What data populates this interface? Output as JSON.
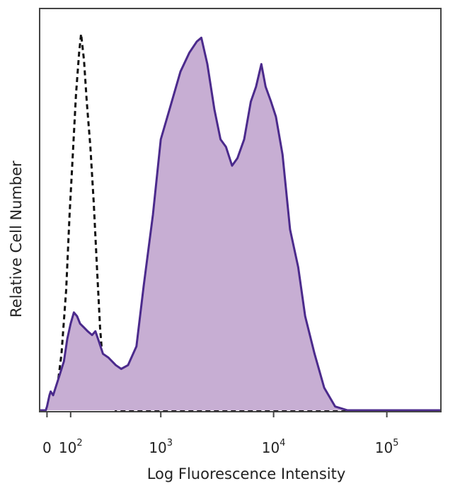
{
  "chart_data": {
    "type": "area",
    "xlabel": "Log Fluorescence Intensity",
    "ylabel": "Relative Cell Number",
    "x_scale": "biexponential",
    "xlim": [
      -30,
      300000
    ],
    "ylim": [
      0,
      1
    ],
    "x_ticks": [
      {
        "value": 0,
        "base": "0",
        "exp": ""
      },
      {
        "value": 100,
        "base": "10",
        "exp": "2"
      },
      {
        "value": 1000,
        "base": "10",
        "exp": "3"
      },
      {
        "value": 10000,
        "base": "10",
        "exp": "4"
      },
      {
        "value": 100000,
        "base": "10",
        "exp": "5"
      }
    ],
    "series": [
      {
        "style": "dashed-line",
        "color": "#111111",
        "points": [
          [
            -30,
            0.0
          ],
          [
            0,
            0.0
          ],
          [
            20,
            0.01
          ],
          [
            40,
            0.05
          ],
          [
            60,
            0.15
          ],
          [
            80,
            0.32
          ],
          [
            95,
            0.52
          ],
          [
            110,
            0.68
          ],
          [
            125,
            0.84
          ],
          [
            140,
            0.95
          ],
          [
            150,
            1.0
          ],
          [
            165,
            0.93
          ],
          [
            180,
            0.82
          ],
          [
            200,
            0.7
          ],
          [
            220,
            0.55
          ],
          [
            240,
            0.38
          ],
          [
            260,
            0.22
          ],
          [
            280,
            0.12
          ],
          [
            300,
            0.06
          ],
          [
            330,
            0.02
          ],
          [
            380,
            0.0
          ],
          [
            1000,
            0.0
          ],
          [
            10000,
            0.0
          ],
          [
            100000,
            0.0
          ],
          [
            300000,
            0.0
          ]
        ]
      },
      {
        "style": "filled-area",
        "color": "#4b2a8c",
        "fill": "#c7aed3",
        "points": [
          [
            -30,
            0.0
          ],
          [
            -5,
            0.0
          ],
          [
            0,
            0.01
          ],
          [
            10,
            0.04
          ],
          [
            15,
            0.05
          ],
          [
            25,
            0.04
          ],
          [
            40,
            0.07
          ],
          [
            55,
            0.1
          ],
          [
            70,
            0.13
          ],
          [
            85,
            0.19
          ],
          [
            100,
            0.23
          ],
          [
            115,
            0.26
          ],
          [
            130,
            0.25
          ],
          [
            145,
            0.23
          ],
          [
            165,
            0.22
          ],
          [
            185,
            0.21
          ],
          [
            210,
            0.2
          ],
          [
            230,
            0.21
          ],
          [
            255,
            0.18
          ],
          [
            280,
            0.15
          ],
          [
            320,
            0.14
          ],
          [
            380,
            0.12
          ],
          [
            430,
            0.11
          ],
          [
            500,
            0.12
          ],
          [
            600,
            0.17
          ],
          [
            700,
            0.33
          ],
          [
            850,
            0.52
          ],
          [
            1000,
            0.72
          ],
          [
            1200,
            0.8
          ],
          [
            1500,
            0.9
          ],
          [
            1800,
            0.95
          ],
          [
            2100,
            0.98
          ],
          [
            2300,
            0.99
          ],
          [
            2600,
            0.92
          ],
          [
            3000,
            0.8
          ],
          [
            3400,
            0.72
          ],
          [
            3800,
            0.7
          ],
          [
            4300,
            0.65
          ],
          [
            4800,
            0.67
          ],
          [
            5500,
            0.72
          ],
          [
            6300,
            0.82
          ],
          [
            7000,
            0.86
          ],
          [
            7800,
            0.92
          ],
          [
            8500,
            0.86
          ],
          [
            9500,
            0.82
          ],
          [
            10500,
            0.78
          ],
          [
            12000,
            0.68
          ],
          [
            14000,
            0.48
          ],
          [
            16500,
            0.38
          ],
          [
            19000,
            0.25
          ],
          [
            23000,
            0.15
          ],
          [
            28000,
            0.06
          ],
          [
            35000,
            0.01
          ],
          [
            45000,
            0.0
          ],
          [
            100000,
            0.0
          ],
          [
            300000,
            0.0
          ]
        ]
      }
    ]
  }
}
